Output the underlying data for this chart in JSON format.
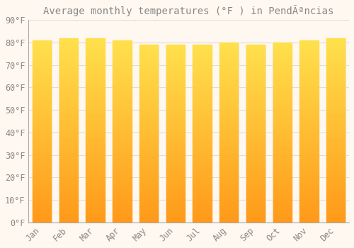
{
  "title": "Average monthly temperatures (°F ) in PendÃªncias",
  "months": [
    "Jan",
    "Feb",
    "Mar",
    "Apr",
    "May",
    "Jun",
    "Jul",
    "Aug",
    "Sep",
    "Oct",
    "Nov",
    "Dec"
  ],
  "values": [
    81,
    82,
    82,
    81,
    79,
    79,
    79,
    80,
    79,
    80,
    81,
    82
  ],
  "bar_color_top": "#FFDD44",
  "bar_color_bottom": "#FFA020",
  "bar_edge_color": "#E8E8E8",
  "background_color": "#FFF8F0",
  "plot_bg_color": "#FFF8F0",
  "grid_color": "#DDDDDD",
  "text_color": "#888888",
  "spine_color": "#AAAAAA",
  "ylim": [
    0,
    90
  ],
  "ytick_step": 10,
  "title_fontsize": 10,
  "tick_fontsize": 8.5,
  "bar_width": 0.72
}
